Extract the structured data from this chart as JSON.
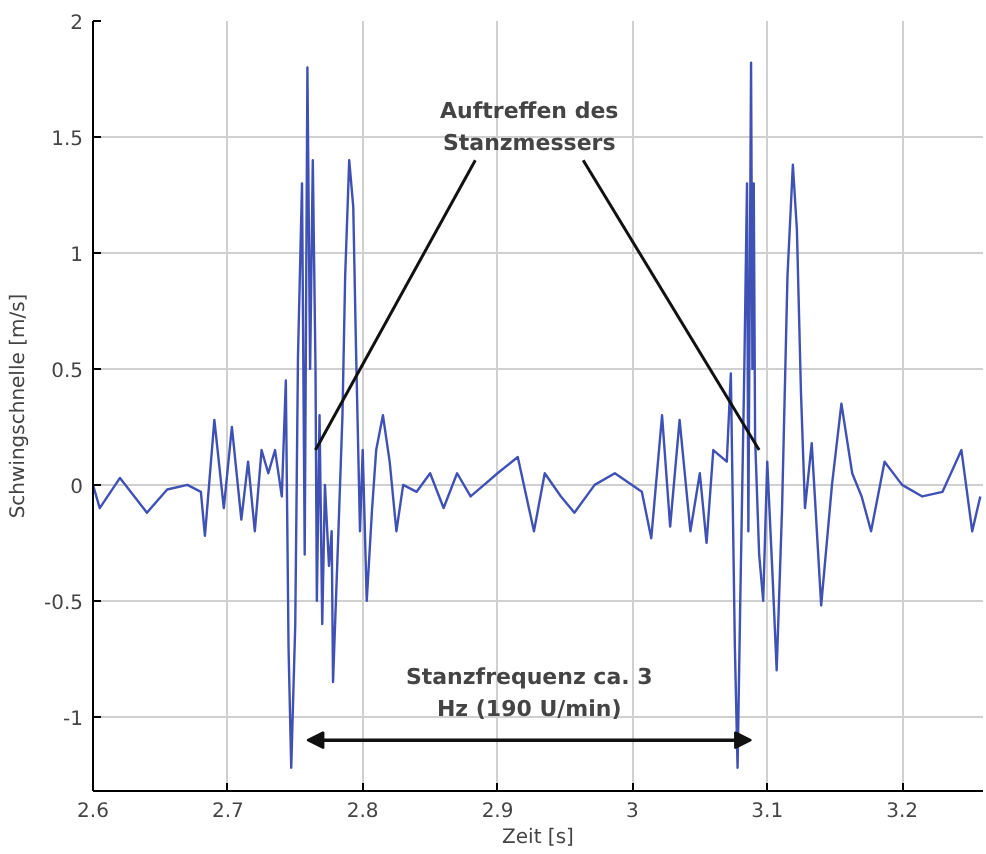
{
  "chart_data": {
    "type": "line",
    "xlabel": "Zeit [s]",
    "ylabel": "Schwingschnelle [m/s]",
    "xlim": [
      2.6,
      3.26
    ],
    "ylim": [
      -1.32,
      2
    ],
    "xticks": [
      2.6,
      2.7,
      2.8,
      2.9,
      3,
      3.1,
      3.2
    ],
    "yticks": [
      -1,
      -0.5,
      0,
      0.5,
      1,
      1.5,
      2
    ],
    "grid": true,
    "marker": "none",
    "line_style": "solid",
    "annotations": [
      {
        "text": "Auftreffen des\nStanzmessers",
        "x": 2.765,
        "y": 0.15
      },
      "Stanzfrequenz ca. 3\nHz (190 U/min)"
    ],
    "series": [
      {
        "color": "#3f51b5",
        "x": [
          2.6,
          2.605,
          2.62,
          2.64,
          2.655,
          2.67,
          2.68,
          2.683,
          2.69,
          2.697,
          2.703,
          2.71,
          2.715,
          2.72,
          2.725,
          2.73,
          2.735,
          2.74,
          2.743,
          2.745,
          2.747,
          2.75,
          2.752,
          2.755,
          2.757,
          2.759,
          2.761,
          2.763,
          2.765,
          2.766,
          2.768,
          2.77,
          2.772,
          2.775,
          2.777,
          2.778,
          2.782,
          2.785,
          2.787,
          2.79,
          2.793,
          2.795,
          2.798,
          2.8,
          2.803,
          2.807,
          2.81,
          2.815,
          2.82,
          2.825,
          2.83,
          2.84,
          2.85,
          2.86,
          2.87,
          2.88,
          2.89,
          2.9,
          2.915,
          2.927,
          2.935,
          2.947,
          2.957,
          2.972,
          2.987,
          3.007,
          3.014,
          3.022,
          3.028,
          3.035,
          3.043,
          3.05,
          3.055,
          3.06,
          3.07,
          3.073,
          3.076,
          3.078,
          3.08,
          3.083,
          3.085,
          3.086,
          3.088,
          3.089,
          3.09,
          3.091,
          3.094,
          3.097,
          3.1,
          3.104,
          3.107,
          3.111,
          3.115,
          3.119,
          3.122,
          3.125,
          3.128,
          3.133,
          3.14,
          3.148,
          3.155,
          3.163,
          3.17,
          3.177,
          3.187,
          3.2,
          3.215,
          3.23,
          3.244,
          3.252,
          3.258
        ],
        "values": [
          0.0,
          -0.1,
          0.03,
          -0.12,
          -0.02,
          0.0,
          -0.03,
          -0.22,
          0.28,
          -0.1,
          0.25,
          -0.15,
          0.1,
          -0.2,
          0.15,
          0.05,
          0.15,
          -0.05,
          0.45,
          -0.7,
          -1.22,
          -0.6,
          0.55,
          1.3,
          -0.3,
          1.8,
          0.5,
          1.4,
          0.5,
          -0.5,
          0.3,
          -0.6,
          0.0,
          -0.35,
          -0.2,
          -0.85,
          -0.2,
          0.3,
          0.9,
          1.4,
          1.2,
          0.6,
          -0.2,
          0.15,
          -0.5,
          -0.1,
          0.15,
          0.3,
          0.1,
          -0.2,
          0.0,
          -0.03,
          0.05,
          -0.1,
          0.05,
          -0.05,
          0.0,
          0.05,
          0.12,
          -0.2,
          0.05,
          -0.05,
          -0.12,
          0.0,
          0.05,
          -0.03,
          -0.23,
          0.3,
          -0.18,
          0.28,
          -0.2,
          0.05,
          -0.25,
          0.15,
          0.1,
          0.48,
          -0.7,
          -1.22,
          -0.5,
          0.5,
          1.3,
          -0.2,
          1.82,
          0.5,
          1.3,
          0.2,
          -0.3,
          -0.5,
          0.1,
          -0.4,
          -0.8,
          -0.1,
          0.9,
          1.38,
          1.1,
          0.4,
          -0.1,
          0.18,
          -0.52,
          0.0,
          0.35,
          0.05,
          -0.05,
          -0.2,
          0.1,
          0.0,
          -0.05,
          -0.03,
          0.15,
          -0.2,
          -0.05
        ]
      }
    ]
  }
}
